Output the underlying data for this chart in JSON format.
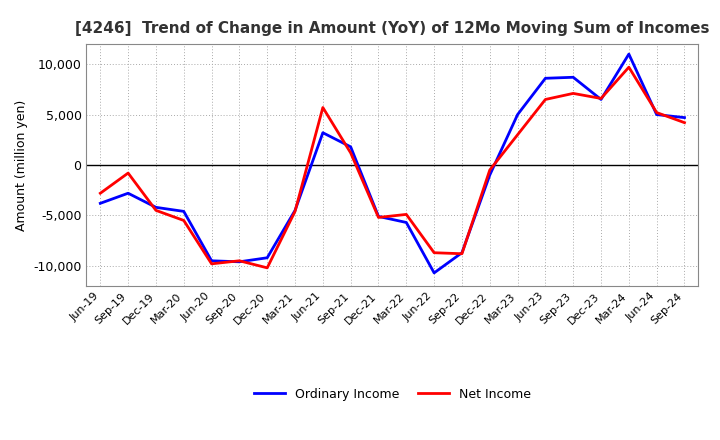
{
  "title": "[4246]  Trend of Change in Amount (YoY) of 12Mo Moving Sum of Incomes",
  "ylabel": "Amount (million yen)",
  "background_color": "#ffffff",
  "grid_color": "#aaaaaa",
  "x_labels": [
    "Jun-19",
    "Sep-19",
    "Dec-19",
    "Mar-20",
    "Jun-20",
    "Sep-20",
    "Dec-20",
    "Mar-21",
    "Jun-21",
    "Sep-21",
    "Dec-21",
    "Mar-22",
    "Jun-22",
    "Sep-22",
    "Dec-22",
    "Mar-23",
    "Jun-23",
    "Sep-23",
    "Dec-23",
    "Mar-24",
    "Jun-24",
    "Sep-24"
  ],
  "ordinary_income": [
    -3800,
    -2800,
    -4200,
    -4600,
    -9500,
    -9600,
    -9200,
    -4500,
    3200,
    1800,
    -5100,
    -5700,
    -10700,
    -8700,
    -1000,
    5000,
    8600,
    8700,
    6500,
    11000,
    5000,
    4700
  ],
  "net_income": [
    -2800,
    -800,
    -4500,
    -5500,
    -9800,
    -9500,
    -10200,
    -4600,
    5700,
    1200,
    -5200,
    -4900,
    -8700,
    -8800,
    -500,
    3000,
    6500,
    7100,
    6600,
    9700,
    5200,
    4200
  ],
  "ordinary_income_color": "#0000ff",
  "net_income_color": "#ff0000",
  "ylim": [
    -12000,
    12000
  ],
  "yticks": [
    -10000,
    -5000,
    0,
    5000,
    10000
  ],
  "line_width": 2.0,
  "legend_ordinary": "Ordinary Income",
  "legend_net": "Net Income",
  "title_color": "#333333",
  "title_fontsize": 11,
  "ylabel_fontsize": 9,
  "tick_fontsize": 9,
  "xtick_fontsize": 8
}
